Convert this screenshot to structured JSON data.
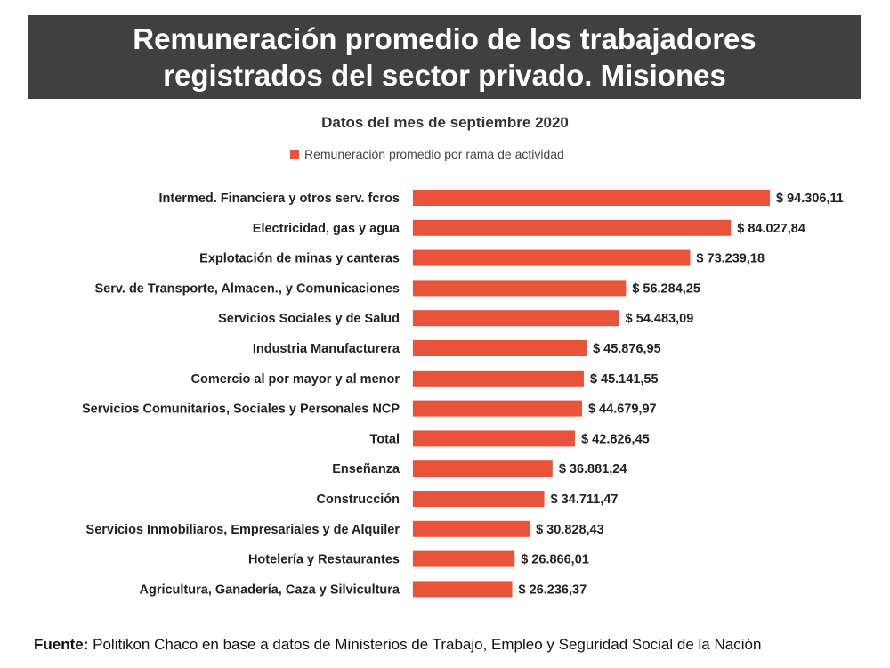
{
  "header": {
    "title_line1": "Remuneración promedio de los trabajadores",
    "title_line2": "registrados del sector privado. Misiones"
  },
  "chart_data": {
    "type": "bar",
    "orientation": "horizontal",
    "subtitle": "Datos del mes de septiembre 2020",
    "legend": "Remuneración promedio por rama de actividad",
    "bar_color": "#E8533A",
    "categories": [
      "Intermed. Financiera y otros serv. fcros",
      "Electricidad, gas y agua",
      "Explotación de minas y canteras",
      "Serv. de Transporte, Almacen., y Comunicaciones",
      "Servicios Sociales y de Salud",
      "Industria Manufacturera",
      "Comercio al por mayor y al menor",
      "Servicios Comunitarios, Sociales y Personales NCP",
      "Total",
      "Enseñanza",
      "Construcción",
      "Servicios Inmobiliaros, Empresariales y de Alquiler",
      "Hotelería y Restaurantes",
      "Agricultura, Ganadería, Caza y Silvicultura"
    ],
    "values": [
      94306.11,
      84027.84,
      73239.18,
      56284.25,
      54483.09,
      45876.95,
      45141.55,
      44679.97,
      42826.45,
      36881.24,
      34711.47,
      30828.43,
      26866.01,
      26236.37
    ],
    "value_labels": [
      "$ 94.306,11",
      "$ 84.027,84",
      "$ 73.239,18",
      "$ 56.284,25",
      "$ 54.483,09",
      "$ 45.876,95",
      "$ 45.141,55",
      "$ 44.679,97",
      "$ 42.826,45",
      "$ 36.881,24",
      "$ 34.711,47",
      "$ 30.828,43",
      "$ 26.866,01",
      "$ 26.236,37"
    ],
    "xlim": [
      0,
      100000
    ]
  },
  "footer": {
    "source_label": "Fuente:",
    "source_text": "Politikon Chaco en base a datos de Ministerios de Trabajo, Empleo y Seguridad Social de la Nación"
  }
}
